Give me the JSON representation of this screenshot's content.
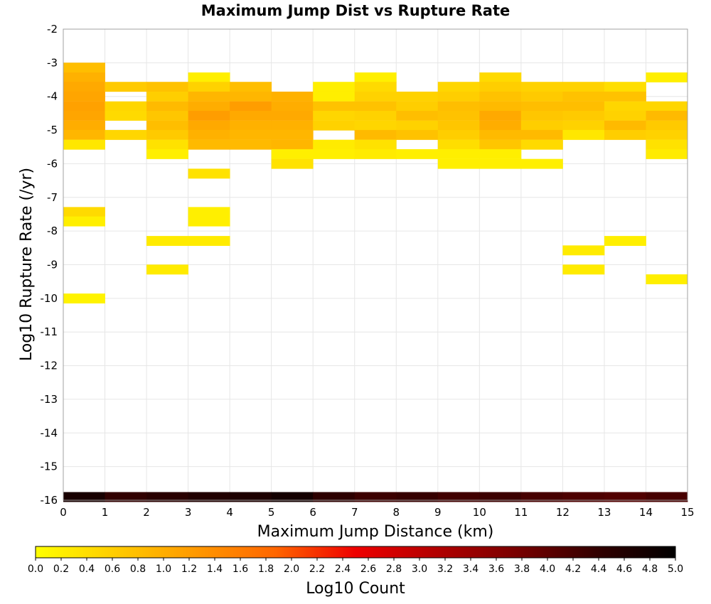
{
  "chart_data": {
    "type": "heatmap",
    "title": "Maximum Jump Dist vs Rupture Rate",
    "xlabel": "Maximum Jump Distance (km)",
    "ylabel": "Log10 Rupture Rate (/yr)",
    "xlim": [
      0,
      15
    ],
    "ylim": [
      -16,
      -2
    ],
    "x_ticks": [
      "0",
      "1",
      "2",
      "3",
      "4",
      "5",
      "6",
      "7",
      "8",
      "9",
      "10",
      "11",
      "12",
      "13",
      "14",
      "15"
    ],
    "y_ticks": [
      "-2",
      "-3",
      "-4",
      "-5",
      "-6",
      "-7",
      "-8",
      "-9",
      "-10",
      "-11",
      "-12",
      "-13",
      "-14",
      "-15",
      "-16"
    ],
    "grid": true,
    "x_bin_width": 1,
    "y_bin_height": 0.286,
    "colorbar": {
      "label": "Log10 Count",
      "range": [
        0,
        5
      ],
      "ticks": [
        "0.0",
        "0.2",
        "0.4",
        "0.6",
        "0.8",
        "1.0",
        "1.2",
        "1.4",
        "1.6",
        "1.8",
        "2.0",
        "2.2",
        "2.4",
        "2.6",
        "2.8",
        "3.0",
        "3.2",
        "3.4",
        "3.6",
        "3.8",
        "4.0",
        "4.2",
        "4.4",
        "4.6",
        "4.8",
        "5.0"
      ],
      "colors": [
        "#ffff00",
        "#ffcc00",
        "#ff9900",
        "#ff6600",
        "#ee0000",
        "#b30000",
        "#7a0000",
        "#330000",
        "#000000"
      ]
    },
    "cells": [
      {
        "x": 0,
        "y": -3.14,
        "v": 0.8
      },
      {
        "x": 0,
        "y": -3.43,
        "v": 0.95
      },
      {
        "x": 0,
        "y": -3.71,
        "v": 1.05
      },
      {
        "x": 0,
        "y": -4.0,
        "v": 1.1
      },
      {
        "x": 0,
        "y": -4.29,
        "v": 1.15
      },
      {
        "x": 0,
        "y": -4.57,
        "v": 1.1
      },
      {
        "x": 0,
        "y": -4.86,
        "v": 1.0
      },
      {
        "x": 0,
        "y": -5.14,
        "v": 0.9
      },
      {
        "x": 0,
        "y": -5.43,
        "v": 0.3
      },
      {
        "x": 0,
        "y": -7.43,
        "v": 0.45
      },
      {
        "x": 0,
        "y": -7.71,
        "v": 0.2
      },
      {
        "x": 0,
        "y": -10.0,
        "v": 0.15
      },
      {
        "x": 1,
        "y": -3.71,
        "v": 0.65
      },
      {
        "x": 1,
        "y": -4.29,
        "v": 0.5
      },
      {
        "x": 1,
        "y": -4.57,
        "v": 0.45
      },
      {
        "x": 1,
        "y": -5.14,
        "v": 0.5
      },
      {
        "x": 2,
        "y": -3.71,
        "v": 0.75
      },
      {
        "x": 2,
        "y": -4.0,
        "v": 0.6
      },
      {
        "x": 2,
        "y": -4.29,
        "v": 0.85
      },
      {
        "x": 2,
        "y": -4.57,
        "v": 0.7
      },
      {
        "x": 2,
        "y": -4.86,
        "v": 0.8
      },
      {
        "x": 2,
        "y": -5.14,
        "v": 0.65
      },
      {
        "x": 2,
        "y": -5.43,
        "v": 0.35
      },
      {
        "x": 2,
        "y": -5.71,
        "v": 0.2
      },
      {
        "x": 2,
        "y": -8.29,
        "v": 0.25
      },
      {
        "x": 2,
        "y": -9.14,
        "v": 0.25
      },
      {
        "x": 3,
        "y": -3.43,
        "v": 0.2
      },
      {
        "x": 3,
        "y": -3.71,
        "v": 0.55
      },
      {
        "x": 3,
        "y": -4.0,
        "v": 0.9
      },
      {
        "x": 3,
        "y": -4.29,
        "v": 1.0
      },
      {
        "x": 3,
        "y": -4.57,
        "v": 1.2
      },
      {
        "x": 3,
        "y": -4.86,
        "v": 1.05
      },
      {
        "x": 3,
        "y": -5.14,
        "v": 0.95
      },
      {
        "x": 3,
        "y": -5.43,
        "v": 0.85
      },
      {
        "x": 3,
        "y": -6.29,
        "v": 0.35
      },
      {
        "x": 3,
        "y": -7.43,
        "v": 0.2
      },
      {
        "x": 3,
        "y": -7.71,
        "v": 0.2
      },
      {
        "x": 3,
        "y": -8.29,
        "v": 0.25
      },
      {
        "x": 4,
        "y": -3.71,
        "v": 0.8
      },
      {
        "x": 4,
        "y": -4.0,
        "v": 0.9
      },
      {
        "x": 4,
        "y": -4.29,
        "v": 1.2
      },
      {
        "x": 4,
        "y": -4.57,
        "v": 1.05
      },
      {
        "x": 4,
        "y": -4.86,
        "v": 0.95
      },
      {
        "x": 4,
        "y": -5.14,
        "v": 0.9
      },
      {
        "x": 4,
        "y": -5.43,
        "v": 0.85
      },
      {
        "x": 5,
        "y": -4.0,
        "v": 0.95
      },
      {
        "x": 5,
        "y": -4.29,
        "v": 1.0
      },
      {
        "x": 5,
        "y": -4.57,
        "v": 1.05
      },
      {
        "x": 5,
        "y": -4.86,
        "v": 0.95
      },
      {
        "x": 5,
        "y": -5.14,
        "v": 0.9
      },
      {
        "x": 5,
        "y": -5.43,
        "v": 0.9
      },
      {
        "x": 5,
        "y": -5.71,
        "v": 0.2
      },
      {
        "x": 5,
        "y": -6.0,
        "v": 0.35
      },
      {
        "x": 6,
        "y": -3.71,
        "v": 0.2
      },
      {
        "x": 6,
        "y": -4.0,
        "v": 0.2
      },
      {
        "x": 6,
        "y": -4.29,
        "v": 0.75
      },
      {
        "x": 6,
        "y": -4.57,
        "v": 0.5
      },
      {
        "x": 6,
        "y": -4.86,
        "v": 0.55
      },
      {
        "x": 6,
        "y": -5.43,
        "v": 0.25
      },
      {
        "x": 6,
        "y": -5.71,
        "v": 0.2
      },
      {
        "x": 7,
        "y": -3.43,
        "v": 0.2
      },
      {
        "x": 7,
        "y": -3.71,
        "v": 0.45
      },
      {
        "x": 7,
        "y": -4.0,
        "v": 0.55
      },
      {
        "x": 7,
        "y": -4.29,
        "v": 0.75
      },
      {
        "x": 7,
        "y": -4.57,
        "v": 0.55
      },
      {
        "x": 7,
        "y": -4.86,
        "v": 0.5
      },
      {
        "x": 7,
        "y": -5.14,
        "v": 0.85
      },
      {
        "x": 7,
        "y": -5.43,
        "v": 0.35
      },
      {
        "x": 7,
        "y": -5.71,
        "v": 0.25
      },
      {
        "x": 8,
        "y": -4.0,
        "v": 0.55
      },
      {
        "x": 8,
        "y": -4.29,
        "v": 0.6
      },
      {
        "x": 8,
        "y": -4.57,
        "v": 0.8
      },
      {
        "x": 8,
        "y": -4.86,
        "v": 0.55
      },
      {
        "x": 8,
        "y": -5.14,
        "v": 0.75
      },
      {
        "x": 8,
        "y": -5.71,
        "v": 0.2
      },
      {
        "x": 9,
        "y": -3.71,
        "v": 0.5
      },
      {
        "x": 9,
        "y": -4.0,
        "v": 0.6
      },
      {
        "x": 9,
        "y": -4.29,
        "v": 0.8
      },
      {
        "x": 9,
        "y": -4.57,
        "v": 0.75
      },
      {
        "x": 9,
        "y": -4.86,
        "v": 0.7
      },
      {
        "x": 9,
        "y": -5.14,
        "v": 0.6
      },
      {
        "x": 9,
        "y": -5.43,
        "v": 0.4
      },
      {
        "x": 9,
        "y": -5.71,
        "v": 0.2
      },
      {
        "x": 9,
        "y": -6.0,
        "v": 0.2
      },
      {
        "x": 10,
        "y": -3.43,
        "v": 0.45
      },
      {
        "x": 10,
        "y": -3.71,
        "v": 0.6
      },
      {
        "x": 10,
        "y": -4.0,
        "v": 0.75
      },
      {
        "x": 10,
        "y": -4.29,
        "v": 0.85
      },
      {
        "x": 10,
        "y": -4.57,
        "v": 1.05
      },
      {
        "x": 10,
        "y": -4.86,
        "v": 1.0
      },
      {
        "x": 10,
        "y": -5.14,
        "v": 0.85
      },
      {
        "x": 10,
        "y": -5.43,
        "v": 0.7
      },
      {
        "x": 10,
        "y": -5.71,
        "v": 0.2
      },
      {
        "x": 10,
        "y": -6.0,
        "v": 0.2
      },
      {
        "x": 11,
        "y": -3.71,
        "v": 0.55
      },
      {
        "x": 11,
        "y": -4.0,
        "v": 0.65
      },
      {
        "x": 11,
        "y": -4.29,
        "v": 0.8
      },
      {
        "x": 11,
        "y": -4.57,
        "v": 0.7
      },
      {
        "x": 11,
        "y": -4.86,
        "v": 0.6
      },
      {
        "x": 11,
        "y": -5.14,
        "v": 0.85
      },
      {
        "x": 11,
        "y": -5.43,
        "v": 0.45
      },
      {
        "x": 11,
        "y": -6.0,
        "v": 0.2
      },
      {
        "x": 12,
        "y": -3.71,
        "v": 0.55
      },
      {
        "x": 12,
        "y": -4.0,
        "v": 0.75
      },
      {
        "x": 12,
        "y": -4.29,
        "v": 0.8
      },
      {
        "x": 12,
        "y": -4.57,
        "v": 0.65
      },
      {
        "x": 12,
        "y": -4.86,
        "v": 0.55
      },
      {
        "x": 12,
        "y": -5.14,
        "v": 0.3
      },
      {
        "x": 12,
        "y": -8.57,
        "v": 0.25
      },
      {
        "x": 12,
        "y": -9.14,
        "v": 0.25
      },
      {
        "x": 13,
        "y": -3.71,
        "v": 0.4
      },
      {
        "x": 13,
        "y": -4.0,
        "v": 0.75
      },
      {
        "x": 13,
        "y": -4.29,
        "v": 0.5
      },
      {
        "x": 13,
        "y": -4.57,
        "v": 0.55
      },
      {
        "x": 13,
        "y": -4.86,
        "v": 0.85
      },
      {
        "x": 13,
        "y": -5.14,
        "v": 0.6
      },
      {
        "x": 13,
        "y": -8.29,
        "v": 0.2
      },
      {
        "x": 14,
        "y": -3.43,
        "v": 0.2
      },
      {
        "x": 14,
        "y": -4.29,
        "v": 0.5
      },
      {
        "x": 14,
        "y": -4.57,
        "v": 0.85
      },
      {
        "x": 14,
        "y": -4.86,
        "v": 0.65
      },
      {
        "x": 14,
        "y": -5.14,
        "v": 0.55
      },
      {
        "x": 14,
        "y": -5.43,
        "v": 0.35
      },
      {
        "x": 14,
        "y": -5.71,
        "v": 0.25
      },
      {
        "x": 14,
        "y": -9.43,
        "v": 0.2
      },
      {
        "x": 0,
        "y": -15.9,
        "v": 4.7
      },
      {
        "x": 1,
        "y": -15.9,
        "v": 4.4
      },
      {
        "x": 2,
        "y": -15.9,
        "v": 4.5
      },
      {
        "x": 3,
        "y": -15.9,
        "v": 4.6
      },
      {
        "x": 4,
        "y": -15.9,
        "v": 4.65
      },
      {
        "x": 5,
        "y": -15.9,
        "v": 4.75
      },
      {
        "x": 6,
        "y": -15.9,
        "v": 4.45
      },
      {
        "x": 7,
        "y": -15.9,
        "v": 4.3
      },
      {
        "x": 8,
        "y": -15.9,
        "v": 4.35
      },
      {
        "x": 9,
        "y": -15.9,
        "v": 4.25
      },
      {
        "x": 10,
        "y": -15.9,
        "v": 4.3
      },
      {
        "x": 11,
        "y": -15.9,
        "v": 4.2
      },
      {
        "x": 12,
        "y": -15.9,
        "v": 4.15
      },
      {
        "x": 13,
        "y": -15.9,
        "v": 4.1
      },
      {
        "x": 14,
        "y": -15.9,
        "v": 4.2
      }
    ]
  }
}
